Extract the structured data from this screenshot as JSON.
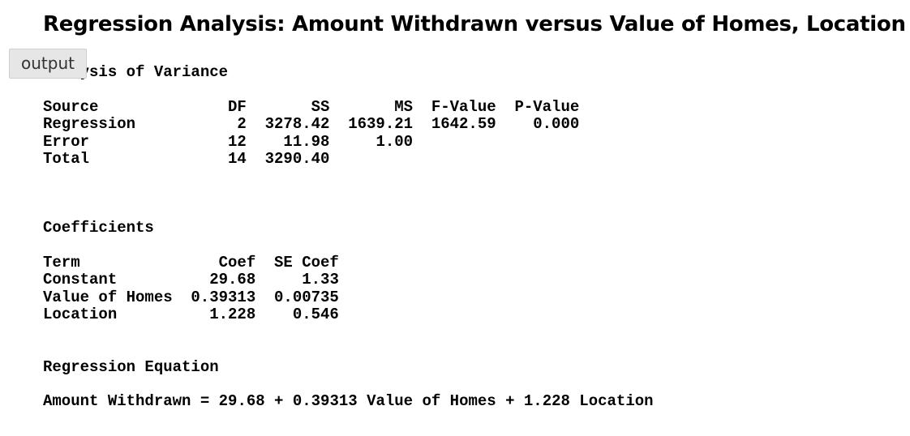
{
  "title": "Regression Analysis: Amount Withdrawn versus Value of Homes, Location",
  "output_tab_label": "output",
  "anova": {
    "heading": "Analysis of Variance",
    "header": [
      "Source",
      "DF",
      "SS",
      "MS",
      "F-Value",
      "P-Value"
    ],
    "rows": [
      [
        "Regression",
        "2",
        "3278.42",
        "1639.21",
        "1642.59",
        "0.000"
      ],
      [
        "Error",
        "12",
        "11.98",
        "1.00",
        "",
        ""
      ],
      [
        "Total",
        "14",
        "3290.40",
        "",
        "",
        ""
      ]
    ]
  },
  "coefficients": {
    "heading": "Coefficients",
    "header": [
      "Term",
      "Coef",
      "SE Coef"
    ],
    "rows": [
      [
        "Constant",
        "29.68",
        "1.33"
      ],
      [
        "Value of Homes",
        "0.39313",
        "0.00735"
      ],
      [
        "Location",
        "1.228",
        "0.546"
      ]
    ]
  },
  "equation": {
    "heading": "Regression Equation",
    "text": "Amount Withdrawn = 29.68 + 0.39313 Value of Homes + 1.228 Location"
  }
}
